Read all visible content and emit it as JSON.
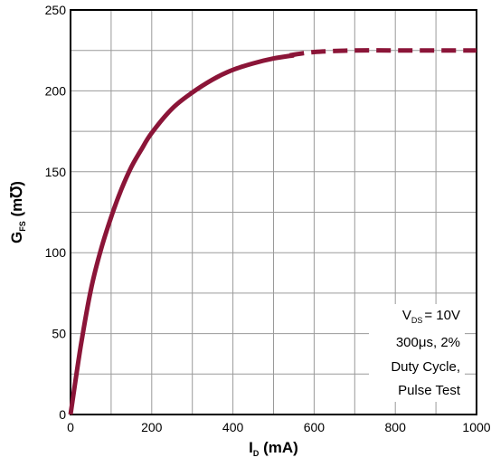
{
  "chart_data": {
    "type": "line",
    "xlabel": {
      "main": "I",
      "sub": "D",
      "unit": " (mA)"
    },
    "ylabel": {
      "main": "G",
      "sub": "FS",
      "unit": " (m℧)"
    },
    "xlim": [
      0,
      1000
    ],
    "ylim": [
      0,
      250
    ],
    "x_ticks": [
      "0",
      "200",
      "400",
      "600",
      "800",
      "1000"
    ],
    "y_ticks": [
      "0",
      "50",
      "100",
      "150",
      "200",
      "250"
    ],
    "x_grid_step": 100,
    "y_grid_step": 25,
    "grid": true,
    "line_color": "#8b1538",
    "series": [
      {
        "x": [
          0,
          25,
          50,
          75,
          100,
          125,
          150,
          175,
          200,
          250,
          300,
          350,
          400,
          450,
          500,
          550
        ],
        "y": [
          0,
          42,
          77,
          102,
          122,
          139,
          153,
          164,
          174,
          189,
          199,
          207,
          213,
          217,
          220,
          222
        ],
        "style": "solid"
      },
      {
        "x": [
          540,
          600,
          700,
          800,
          900,
          1000
        ],
        "y": [
          222,
          224,
          225,
          225,
          225,
          225
        ],
        "style": "dashed"
      }
    ],
    "annotation": {
      "line1": {
        "main": "V",
        "sub": "DS",
        "rest": "= 10V"
      },
      "line2": "300μs, 2%",
      "line3": "Duty Cycle,",
      "line4": "Pulse Test"
    }
  }
}
